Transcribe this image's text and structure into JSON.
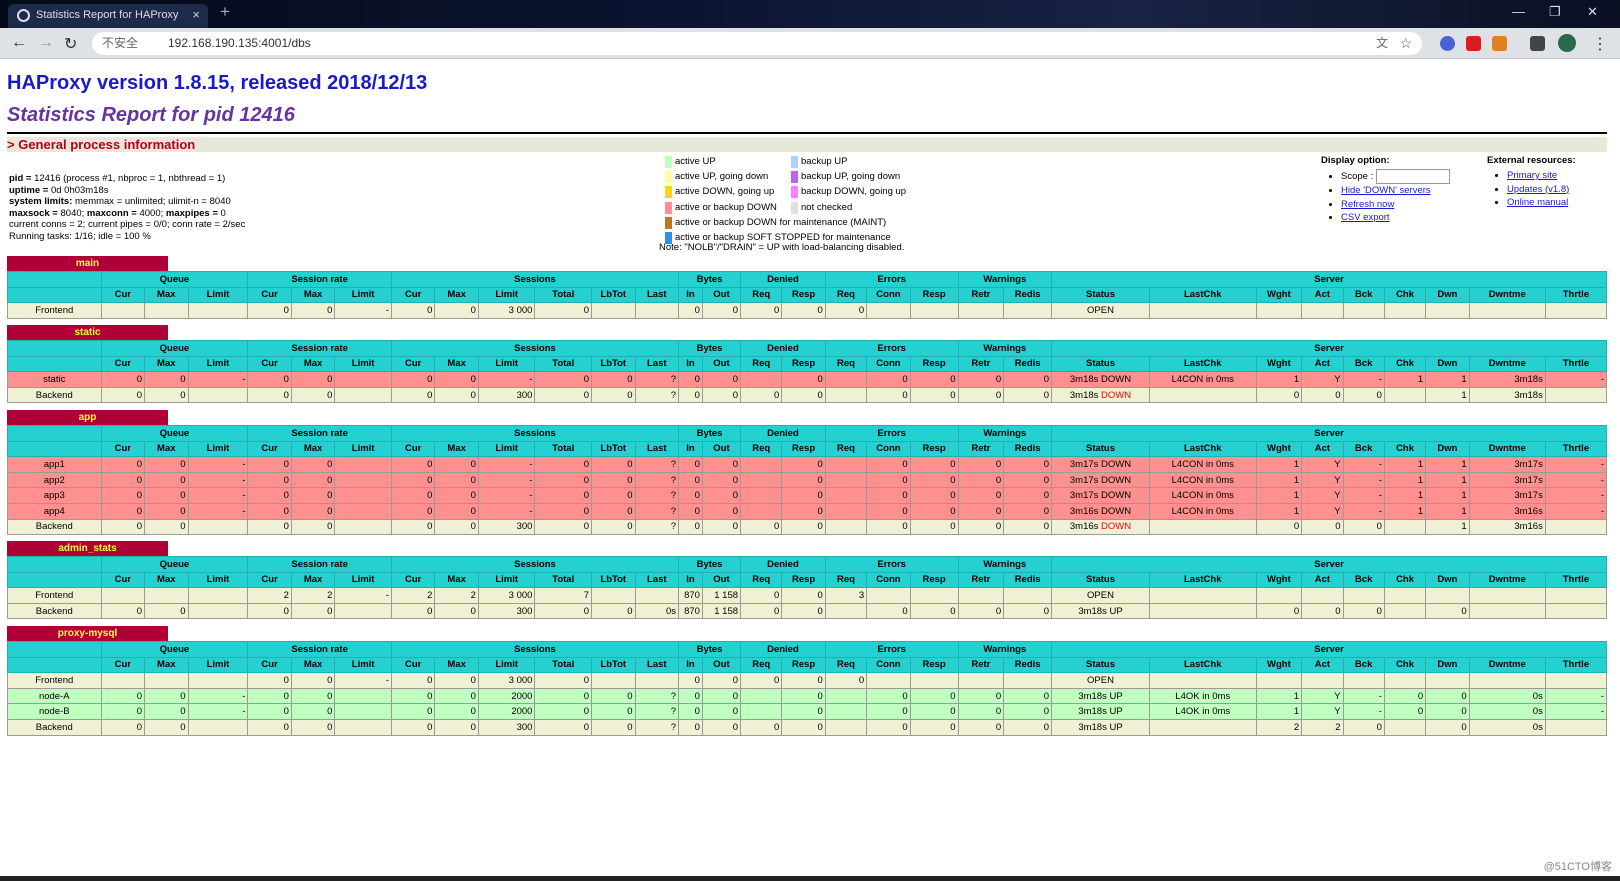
{
  "browser": {
    "tab_title": "Statistics Report for HAProxy",
    "tab_close": "×",
    "new_tab": "+",
    "security": "不安全",
    "url": "192.168.190.135:4001/dbs",
    "min": "—",
    "max": "❐",
    "close": "✕"
  },
  "page": {
    "title": "HAProxy version 1.8.15, released 2018/12/13",
    "subtitle": "Statistics Report for pid 12416",
    "section": "> General process information"
  },
  "procinfo": [
    {
      "b": "pid = ",
      "t": "12416 (process #1, nbproc = 1, nbthread = 1)"
    },
    {
      "b": "uptime = ",
      "t": "0d 0h03m18s"
    },
    {
      "b": "system limits: ",
      "t": "memmax = unlimited; ulimit-n = 8040"
    },
    {
      "b": "maxsock = ",
      "t": "8040; ",
      "b2": "maxconn = ",
      "t2": "4000; ",
      "b3": "maxpipes = ",
      "t3": "0"
    },
    {
      "b": "",
      "t": "current conns = 2; current pipes = 0/0; conn rate = 2/sec"
    },
    {
      "b": "",
      "t": "Running tasks: 1/16; idle = 100 %"
    }
  ],
  "legend_left": [
    {
      "color": "#c0ffc0",
      "label": "active UP"
    },
    {
      "color": "#ffffa0",
      "label": "active UP, going down"
    },
    {
      "color": "#ffd020",
      "label": "active DOWN, going up"
    },
    {
      "color": "#ff9090",
      "label": "active or backup DOWN"
    },
    {
      "color": "#c07820",
      "label": "active or backup DOWN for maintenance (MAINT)"
    },
    {
      "color": "#3090e0",
      "label": "active or backup SOFT STOPPED for maintenance"
    }
  ],
  "legend_right": [
    {
      "color": "#b0d0ff",
      "label": "backup UP"
    },
    {
      "color": "#c060ff",
      "label": "backup UP, going down"
    },
    {
      "color": "#ff80ff",
      "label": "backup DOWN, going up"
    },
    {
      "color": "#e0e0e0",
      "label": "not checked"
    }
  ],
  "legend_note": "Note: \"NOLB\"/\"DRAIN\" = UP with load-balancing disabled.",
  "display_option": {
    "title": "Display option:",
    "scope_label": "Scope :",
    "links": [
      "Hide 'DOWN' servers",
      "Refresh now",
      "CSV export"
    ]
  },
  "external": {
    "title": "External resources:",
    "links": [
      "Primary site",
      "Updates (v1.8)",
      "Online manual"
    ]
  },
  "groups": [
    "Queue",
    "Session rate",
    "Sessions",
    "Bytes",
    "Denied",
    "Errors",
    "Warnings",
    "Server"
  ],
  "columns": [
    "Cur",
    "Max",
    "Limit",
    "Cur",
    "Max",
    "Limit",
    "Cur",
    "Max",
    "Limit",
    "Total",
    "LbTot",
    "Last",
    "In",
    "Out",
    "Req",
    "Resp",
    "Req",
    "Conn",
    "Resp",
    "Retr",
    "Redis",
    "Status",
    "LastChk",
    "Wght",
    "Act",
    "Bck",
    "Chk",
    "Dwn",
    "Dwntme",
    "Thrtle"
  ],
  "proxies": [
    {
      "name": "main",
      "rows": [
        {
          "cls": "frontend",
          "c": [
            "Frontend",
            "",
            "",
            "",
            "0",
            "0",
            "-",
            "0",
            "0",
            "3 000",
            "0",
            "",
            "",
            "0",
            "0",
            "0",
            "0",
            "0",
            "",
            "",
            "",
            "",
            "OPEN",
            "",
            "",
            "",
            "",
            "",
            "",
            "",
            ""
          ]
        }
      ]
    },
    {
      "name": "static",
      "rows": [
        {
          "cls": "down",
          "c": [
            "static",
            "0",
            "0",
            "-",
            "0",
            "0",
            "",
            "0",
            "0",
            "-",
            "0",
            "0",
            "?",
            "0",
            "0",
            "",
            "0",
            "",
            "0",
            "0",
            "0",
            "0",
            "3m18s DOWN",
            "L4CON in 0ms",
            "1",
            "Y",
            "-",
            "1",
            "1",
            "3m18s",
            "-"
          ]
        },
        {
          "cls": "backend",
          "c": [
            "Backend",
            "0",
            "0",
            "",
            "0",
            "0",
            "",
            "0",
            "0",
            "300",
            "0",
            "0",
            "?",
            "0",
            "0",
            "0",
            "0",
            "",
            "0",
            "0",
            "0",
            "0",
            "3m18s DOWN",
            "",
            "0",
            "0",
            "0",
            "",
            "1",
            "3m18s",
            ""
          ]
        }
      ]
    },
    {
      "name": "app",
      "rows": [
        {
          "cls": "down",
          "c": [
            "app1",
            "0",
            "0",
            "-",
            "0",
            "0",
            "",
            "0",
            "0",
            "-",
            "0",
            "0",
            "?",
            "0",
            "0",
            "",
            "0",
            "",
            "0",
            "0",
            "0",
            "0",
            "3m17s DOWN",
            "L4CON in 0ms",
            "1",
            "Y",
            "-",
            "1",
            "1",
            "3m17s",
            "-"
          ]
        },
        {
          "cls": "down",
          "c": [
            "app2",
            "0",
            "0",
            "-",
            "0",
            "0",
            "",
            "0",
            "0",
            "-",
            "0",
            "0",
            "?",
            "0",
            "0",
            "",
            "0",
            "",
            "0",
            "0",
            "0",
            "0",
            "3m17s DOWN",
            "L4CON in 0ms",
            "1",
            "Y",
            "-",
            "1",
            "1",
            "3m17s",
            "-"
          ]
        },
        {
          "cls": "down",
          "c": [
            "app3",
            "0",
            "0",
            "-",
            "0",
            "0",
            "",
            "0",
            "0",
            "-",
            "0",
            "0",
            "?",
            "0",
            "0",
            "",
            "0",
            "",
            "0",
            "0",
            "0",
            "0",
            "3m17s DOWN",
            "L4CON in 0ms",
            "1",
            "Y",
            "-",
            "1",
            "1",
            "3m17s",
            "-"
          ]
        },
        {
          "cls": "down",
          "c": [
            "app4",
            "0",
            "0",
            "-",
            "0",
            "0",
            "",
            "0",
            "0",
            "-",
            "0",
            "0",
            "?",
            "0",
            "0",
            "",
            "0",
            "",
            "0",
            "0",
            "0",
            "0",
            "3m16s DOWN",
            "L4CON in 0ms",
            "1",
            "Y",
            "-",
            "1",
            "1",
            "3m16s",
            "-"
          ]
        },
        {
          "cls": "backend",
          "c": [
            "Backend",
            "0",
            "0",
            "",
            "0",
            "0",
            "",
            "0",
            "0",
            "300",
            "0",
            "0",
            "?",
            "0",
            "0",
            "0",
            "0",
            "",
            "0",
            "0",
            "0",
            "0",
            "3m16s DOWN",
            "",
            "0",
            "0",
            "0",
            "",
            "1",
            "3m16s",
            ""
          ]
        }
      ]
    },
    {
      "name": "admin_stats",
      "rows": [
        {
          "cls": "frontend",
          "c": [
            "Frontend",
            "",
            "",
            "",
            "2",
            "2",
            "-",
            "2",
            "2",
            "3 000",
            "7",
            "",
            "",
            "870",
            "1 158",
            "0",
            "0",
            "3",
            "",
            "",
            "",
            "",
            "OPEN",
            "",
            "",
            "",
            "",
            "",
            "",
            "",
            ""
          ]
        },
        {
          "cls": "backend",
          "c": [
            "Backend",
            "0",
            "0",
            "",
            "0",
            "0",
            "",
            "0",
            "0",
            "300",
            "0",
            "0",
            "0s",
            "870",
            "1 158",
            "0",
            "0",
            "",
            "0",
            "0",
            "0",
            "0",
            "3m18s UP",
            "",
            "0",
            "0",
            "0",
            "",
            "0",
            "",
            ""
          ]
        }
      ]
    },
    {
      "name": "proxy-mysql",
      "rows": [
        {
          "cls": "frontend",
          "c": [
            "Frontend",
            "",
            "",
            "",
            "0",
            "0",
            "-",
            "0",
            "0",
            "3 000",
            "0",
            "",
            "",
            "0",
            "0",
            "0",
            "0",
            "0",
            "",
            "",
            "",
            "",
            "OPEN",
            "",
            "",
            "",
            "",
            "",
            "",
            "",
            ""
          ]
        },
        {
          "cls": "up",
          "c": [
            "node-A",
            "0",
            "0",
            "-",
            "0",
            "0",
            "",
            "0",
            "0",
            "2000",
            "0",
            "0",
            "?",
            "0",
            "0",
            "",
            "0",
            "",
            "0",
            "0",
            "0",
            "0",
            "3m18s UP",
            "L4OK in 0ms",
            "1",
            "Y",
            "-",
            "0",
            "0",
            "0s",
            "-"
          ]
        },
        {
          "cls": "up",
          "c": [
            "node-B",
            "0",
            "0",
            "-",
            "0",
            "0",
            "",
            "0",
            "0",
            "2000",
            "0",
            "0",
            "?",
            "0",
            "0",
            "",
            "0",
            "",
            "0",
            "0",
            "0",
            "0",
            "3m18s UP",
            "L4OK in 0ms",
            "1",
            "Y",
            "-",
            "0",
            "0",
            "0s",
            "-"
          ]
        },
        {
          "cls": "backend",
          "c": [
            "Backend",
            "0",
            "0",
            "",
            "0",
            "0",
            "",
            "0",
            "0",
            "300",
            "0",
            "0",
            "?",
            "0",
            "0",
            "0",
            "0",
            "",
            "0",
            "0",
            "0",
            "0",
            "3m18s UP",
            "",
            "2",
            "2",
            "0",
            "",
            "0",
            "0s",
            ""
          ]
        }
      ]
    }
  ],
  "watermark": "@51CTO博客"
}
